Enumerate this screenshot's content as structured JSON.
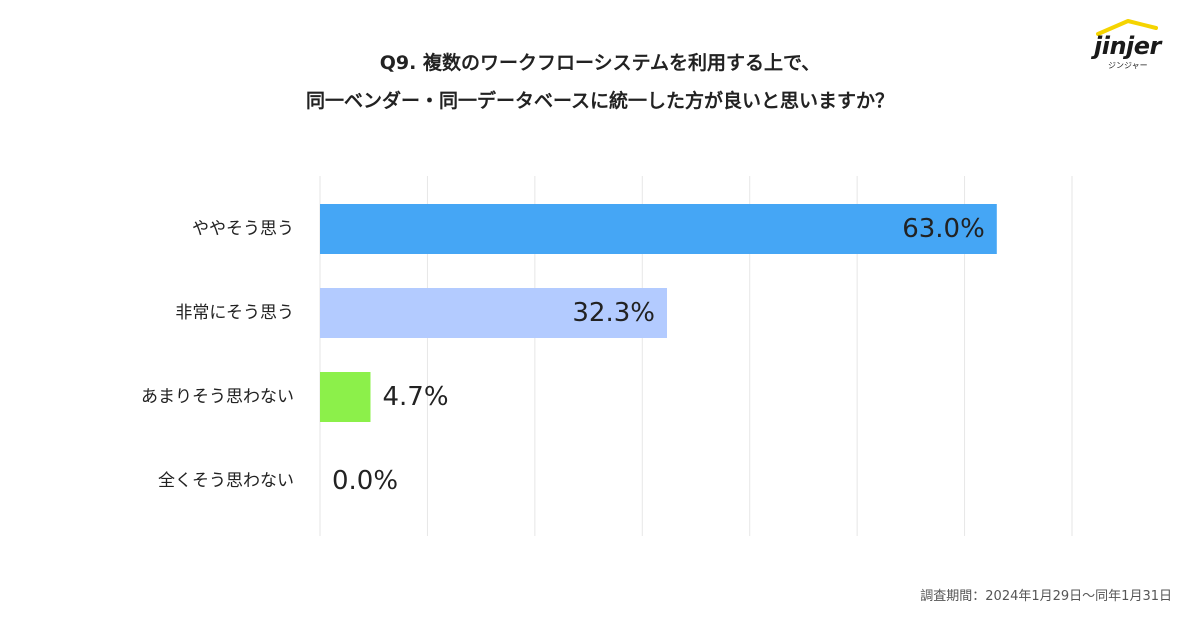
{
  "title": {
    "line1": "Q9. 複数のワークフローシステムを利用する上で、",
    "line2": "同一ベンダー・同一データベースに統一した方が良いと思いますか？"
  },
  "logo": {
    "word": "jinjer",
    "sub": "ジンジャー"
  },
  "footnote": "調査期間：2024年1月29日～同年1月31日",
  "chart_data": {
    "type": "bar",
    "orientation": "horizontal",
    "categories": [
      "ややそう思う",
      "非常にそう思う",
      "あまりそう思わない",
      "全くそう思わない"
    ],
    "values": [
      63.0,
      32.3,
      4.7,
      0.0
    ],
    "value_labels": [
      "63.0%",
      "32.3%",
      "4.7%",
      "0.0%"
    ],
    "colors": [
      "#45a6f5",
      "#b3cbff",
      "#8cf04a",
      "#cccccc"
    ],
    "xlim": [
      0,
      70
    ],
    "grid": true,
    "label_inside": [
      true,
      true,
      false,
      false
    ]
  }
}
